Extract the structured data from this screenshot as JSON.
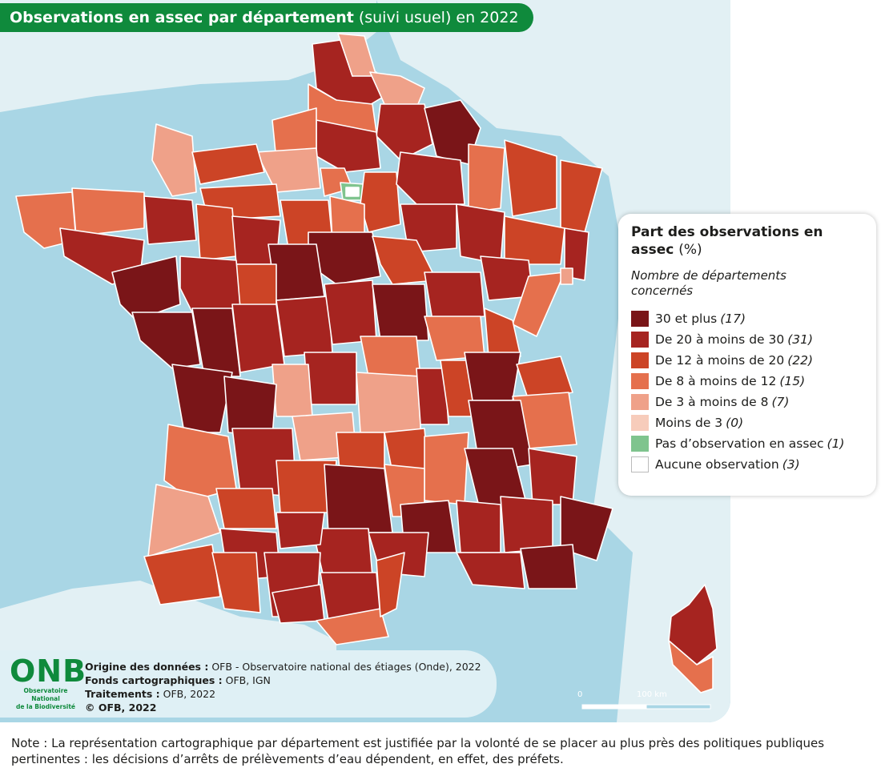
{
  "title": {
    "bold": "Observations en assec par département",
    "light": "(suivi usuel) en 2022"
  },
  "legend": {
    "title": "Part des observations en assec",
    "unit": "(%)",
    "subtitle": "Nombre de départements concernés",
    "items": [
      {
        "label": "30 et plus",
        "count": "(17)",
        "color": "#7a1518"
      },
      {
        "label": "De 20 à moins de 30",
        "count": "(31)",
        "color": "#a62420"
      },
      {
        "label": "De 12 à moins de 20",
        "count": "(22)",
        "color": "#cc4426"
      },
      {
        "label": "De 8 à moins de 12",
        "count": "(15)",
        "color": "#e5704d"
      },
      {
        "label": "De 3 à moins de 8",
        "count": "(7)",
        "color": "#efa189"
      },
      {
        "label": "Moins de 3",
        "count": "(0)",
        "color": "#f7ccbb"
      },
      {
        "label": "Pas d’observation en assec",
        "count": "(1)",
        "color": "#7fc48e"
      },
      {
        "label": "Aucune observation",
        "count": "(3)",
        "color": "#ffffff"
      }
    ]
  },
  "logo": {
    "letters": "ONB",
    "line1": "Observatoire National",
    "line2": "de la Biodiversité"
  },
  "sources": {
    "origin_label": "Origine des données :",
    "origin_value": "OFB - Observatoire national des étiages (Onde), 2022",
    "base_label": "Fonds cartographiques :",
    "base_value": "OFB, IGN",
    "processing_label": "Traitements :",
    "processing_value": "OFB, 2022",
    "copyright": "© OFB, 2022"
  },
  "scale": {
    "start": "0",
    "end": "100 km"
  },
  "note": "Note : La représentation cartographique par département est justifiée par la volonté de se placer au plus près des politiques publiques pertinentes : les décisions d’arrêts de prélèvements d’eau dépendent, en effet, des préfets.",
  "colors": {
    "sea": "#a9d6e5",
    "land": "#e2f0f4",
    "dept_border": "#ffffff",
    "brand_green": "#0f8a3c"
  }
}
